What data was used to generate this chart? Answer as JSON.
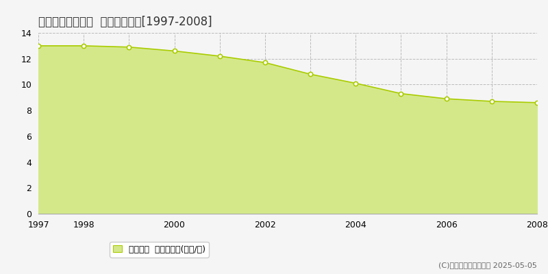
{
  "title": "揖斐郡大野町南方  基準地価推移[1997-2008]",
  "years": [
    1997,
    1998,
    1999,
    2000,
    2001,
    2002,
    2003,
    2004,
    2005,
    2006,
    2007,
    2008
  ],
  "values": [
    13.0,
    13.0,
    12.9,
    12.6,
    12.2,
    11.7,
    10.8,
    10.1,
    9.3,
    8.9,
    8.7,
    8.6
  ],
  "ylim": [
    0,
    14
  ],
  "yticks": [
    0,
    2,
    4,
    6,
    8,
    10,
    12,
    14
  ],
  "xticks": [
    1997,
    1998,
    1999,
    2000,
    2001,
    2002,
    2003,
    2004,
    2005,
    2006,
    2007,
    2008
  ],
  "xtick_labels": [
    "1997",
    "1998",
    "",
    "2000",
    "",
    "2002",
    "",
    "2004",
    "",
    "2006",
    "",
    "2008"
  ],
  "line_color": "#aacc00",
  "fill_color": "#d4e88a",
  "marker_color": "#ffffff",
  "marker_edge_color": "#aacc00",
  "grid_color": "#bbbbbb",
  "bg_color": "#f5f5f5",
  "legend_label": "基準地価  平均坪単価(万円/坪)",
  "copyright_text": "(C)土地価格ドットコム 2025-05-05",
  "title_fontsize": 12,
  "legend_fontsize": 9,
  "copyright_fontsize": 8,
  "tick_fontsize": 9
}
